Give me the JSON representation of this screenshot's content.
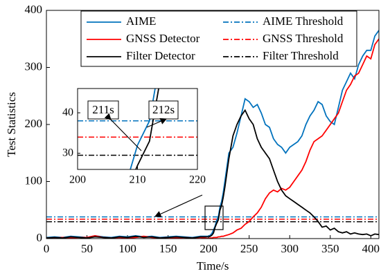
{
  "chart_data": {
    "type": "line",
    "x_label": "Time/s",
    "y_label": "Test Statistics",
    "xlim": [
      0,
      410
    ],
    "xticks": [
      0,
      50,
      100,
      150,
      200,
      250,
      300,
      350,
      400
    ],
    "ylim": [
      0,
      400
    ],
    "yticks": [
      0,
      100,
      200,
      300,
      400
    ],
    "legend": "top",
    "x": [
      0,
      10,
      20,
      30,
      40,
      50,
      60,
      70,
      80,
      90,
      100,
      110,
      120,
      130,
      140,
      150,
      160,
      170,
      180,
      190,
      200,
      202,
      204,
      206,
      208,
      210,
      212,
      214,
      216,
      218,
      220,
      225,
      230,
      235,
      240,
      245,
      250,
      255,
      260,
      265,
      270,
      275,
      280,
      285,
      290,
      295,
      300,
      305,
      310,
      315,
      320,
      325,
      330,
      335,
      340,
      345,
      350,
      355,
      360,
      365,
      370,
      375,
      380,
      385,
      390,
      395,
      400,
      405,
      410
    ],
    "series": [
      {
        "name": "AIME",
        "color": "#0072bd",
        "values": [
          2,
          3,
          2,
          4,
          3,
          2,
          5,
          3,
          2,
          4,
          3,
          5,
          3,
          4,
          2,
          3,
          4,
          3,
          2,
          4,
          4,
          6,
          9,
          15,
          22,
          32,
          38,
          55,
          65,
          80,
          100,
          150,
          160,
          185,
          215,
          245,
          240,
          230,
          235,
          220,
          200,
          195,
          175,
          165,
          160,
          150,
          160,
          165,
          170,
          180,
          200,
          215,
          225,
          240,
          235,
          215,
          205,
          200,
          230,
          260,
          275,
          290,
          280,
          305,
          320,
          330,
          330,
          355,
          365
        ]
      },
      {
        "name": "GNSS Detector",
        "color": "#ff0000",
        "values": [
          1,
          1,
          2,
          1,
          2,
          2,
          5,
          2,
          1,
          2,
          1,
          2,
          4,
          2,
          1,
          2,
          1,
          2,
          1,
          2,
          0,
          1,
          1,
          2,
          2,
          2,
          3,
          3,
          4,
          4,
          5,
          7,
          10,
          15,
          18,
          25,
          30,
          38,
          45,
          55,
          70,
          80,
          85,
          82,
          88,
          85,
          90,
          100,
          110,
          120,
          135,
          155,
          170,
          175,
          180,
          190,
          200,
          210,
          220,
          240,
          260,
          270,
          285,
          290,
          305,
          320,
          315,
          340,
          350
        ]
      },
      {
        "name": "Filter Detector",
        "color": "#000000",
        "values": [
          1,
          2,
          1,
          3,
          2,
          1,
          3,
          2,
          1,
          3,
          2,
          4,
          2,
          3,
          1,
          2,
          3,
          2,
          1,
          3,
          3,
          4,
          6,
          10,
          20,
          27,
          33,
          50,
          58,
          72,
          90,
          140,
          180,
          200,
          215,
          225,
          210,
          200,
          175,
          160,
          150,
          140,
          120,
          100,
          85,
          75,
          70,
          65,
          60,
          55,
          50,
          45,
          38,
          30,
          20,
          22,
          15,
          18,
          12,
          10,
          12,
          8,
          10,
          8,
          7,
          8,
          5,
          8,
          7
        ]
      }
    ],
    "thresholds": [
      {
        "name": "AIME Threshold",
        "color": "#0072bd",
        "value": 38
      },
      {
        "name": "GNSS Threshold",
        "color": "#ff0000",
        "value": 34
      },
      {
        "name": "Filter Threshold",
        "color": "#000000",
        "value": 29.5
      }
    ],
    "inset": {
      "xlim": [
        200,
        220
      ],
      "xticks": [
        200,
        210,
        220
      ],
      "ylim": [
        26,
        46
      ],
      "yticks": [
        30,
        40
      ]
    },
    "annotations": [
      "211s",
      "212s"
    ]
  }
}
